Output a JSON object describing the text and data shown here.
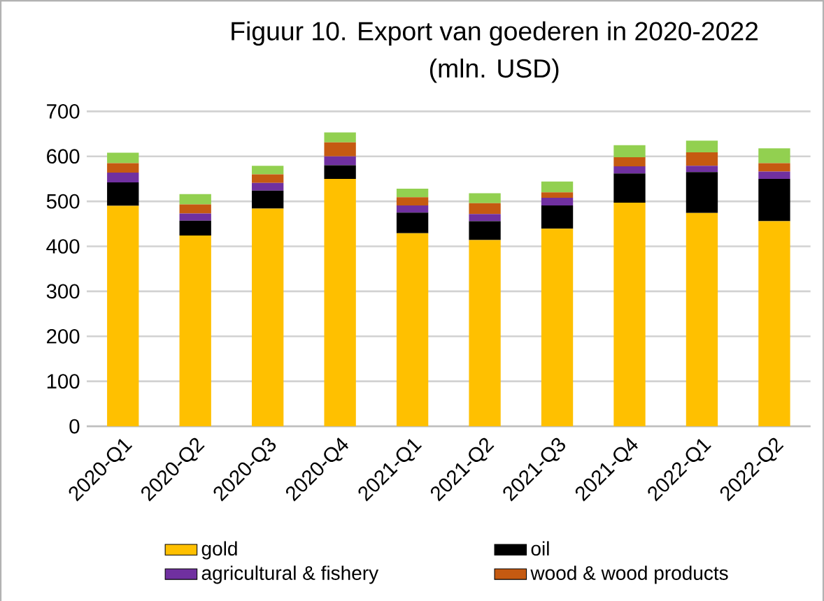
{
  "chart_data": {
    "type": "bar",
    "title": "Figuur 10. Export van goederen in 2020-2022",
    "subtitle": "(mln. USD)",
    "categories": [
      "2020-Q1",
      "2020-Q2",
      "2020-Q3",
      "2020-Q4",
      "2021-Q1",
      "2021-Q2",
      "2021-Q3",
      "2021-Q4",
      "2022-Q1",
      "2022-Q2"
    ],
    "stacked": true,
    "series": [
      {
        "name": "gold",
        "color": "#ffc000",
        "values": [
          490,
          424,
          484,
          550,
          429,
          414,
          439,
          497,
          474,
          456
        ]
      },
      {
        "name": "oil",
        "color": "#000000",
        "values": [
          52,
          33,
          40,
          30,
          46,
          42,
          52,
          65,
          91,
          94
        ]
      },
      {
        "name": "agricultural & fishery",
        "color": "#7030a0",
        "values": [
          22,
          16,
          17,
          20,
          16,
          16,
          17,
          16,
          14,
          16
        ]
      },
      {
        "name": "wood & wood products",
        "color": "#c55a11",
        "values": [
          21,
          20,
          19,
          31,
          18,
          24,
          12,
          20,
          30,
          19
        ]
      },
      {
        "color": "#92d050",
        "values": [
          23,
          23,
          19,
          22,
          19,
          22,
          24,
          27,
          26,
          33
        ]
      }
    ],
    "ylim": [
      0,
      700
    ],
    "yticks": [
      0,
      100,
      200,
      300,
      400,
      500,
      600,
      700
    ],
    "grid": "y",
    "legend": "bottom"
  }
}
